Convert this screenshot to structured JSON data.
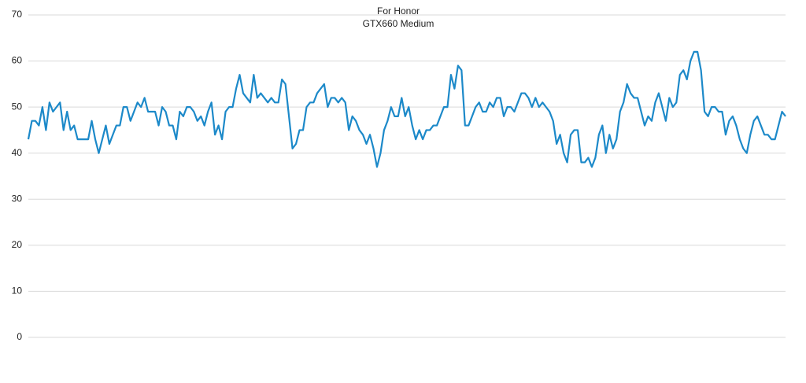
{
  "chart_data": {
    "type": "line",
    "title": "For Honor",
    "subtitle": "GTX660 Medium",
    "categories": [
      null,
      null,
      null,
      null,
      null,
      null,
      null,
      null,
      null,
      null,
      null,
      null,
      null,
      null,
      null,
      null,
      null,
      null,
      null,
      null,
      null,
      null,
      null,
      null,
      null,
      null,
      null,
      null,
      null,
      null,
      null,
      null,
      null,
      null,
      null,
      null,
      null,
      null,
      null,
      null,
      null,
      null,
      null,
      null,
      null,
      null,
      null,
      null,
      null,
      null,
      null,
      null,
      null,
      null,
      null,
      null,
      null,
      null,
      null,
      null,
      null,
      null,
      null,
      null,
      null,
      null,
      null,
      null,
      null,
      null,
      null,
      null,
      null,
      null,
      null,
      null,
      null,
      null,
      null,
      null,
      null,
      null,
      null,
      null,
      null,
      null,
      null,
      null,
      null,
      null,
      null,
      null,
      null,
      null,
      null,
      null,
      null,
      null,
      null,
      null,
      null,
      null,
      null,
      null,
      null,
      null,
      null,
      null,
      null,
      null,
      null,
      null,
      null,
      null,
      null,
      null,
      null,
      null,
      null,
      null,
      null,
      null,
      null,
      null,
      null,
      null,
      null,
      null,
      null,
      null,
      null,
      null,
      null,
      null,
      null,
      null,
      null,
      null,
      null,
      null,
      null,
      null,
      null,
      null,
      null,
      null,
      null,
      null,
      null,
      null,
      null,
      null,
      null,
      null,
      null,
      null,
      null,
      null,
      null,
      null,
      null,
      null,
      null,
      null,
      null,
      null,
      null,
      null,
      null,
      null,
      null,
      null,
      null,
      null,
      null,
      null,
      null,
      null,
      null,
      null,
      null,
      null,
      null,
      null,
      null,
      null,
      null,
      null,
      null,
      null,
      null,
      null,
      null,
      null,
      null,
      null,
      null,
      null,
      null,
      null,
      null,
      null,
      null,
      null,
      null,
      null,
      null,
      null,
      null,
      null,
      null,
      null,
      null,
      null,
      null,
      null
    ],
    "values": [
      43,
      47,
      47,
      46,
      50,
      45,
      51,
      49,
      50,
      51,
      45,
      49,
      45,
      46,
      43,
      43,
      43,
      43,
      47,
      43,
      40,
      43,
      46,
      42,
      44,
      46,
      46,
      50,
      50,
      47,
      49,
      51,
      50,
      52,
      49,
      49,
      49,
      46,
      50,
      49,
      46,
      46,
      43,
      49,
      48,
      50,
      50,
      49,
      47,
      48,
      46,
      49,
      51,
      44,
      46,
      43,
      49,
      50,
      50,
      54,
      57,
      53,
      52,
      51,
      57,
      52,
      53,
      52,
      51,
      52,
      51,
      51,
      56,
      55,
      48,
      41,
      42,
      45,
      45,
      50,
      51,
      51,
      53,
      54,
      55,
      50,
      52,
      52,
      51,
      52,
      51,
      45,
      48,
      47,
      45,
      44,
      42,
      44,
      41,
      37,
      40,
      45,
      47,
      50,
      48,
      48,
      52,
      48,
      50,
      46,
      43,
      45,
      43,
      45,
      45,
      46,
      46,
      48,
      50,
      50,
      57,
      54,
      59,
      58,
      46,
      46,
      48,
      50,
      51,
      49,
      49,
      51,
      50,
      52,
      52,
      48,
      50,
      50,
      49,
      51,
      53,
      53,
      52,
      50,
      52,
      50,
      51,
      50,
      49,
      47,
      42,
      44,
      40,
      38,
      44,
      45,
      45,
      38,
      38,
      39,
      37,
      39,
      44,
      46,
      40,
      44,
      41,
      43,
      49,
      51,
      55,
      53,
      52,
      52,
      49,
      46,
      48,
      47,
      51,
      53,
      50,
      47,
      52,
      50,
      51,
      57,
      58,
      56,
      60,
      62,
      62,
      58,
      49,
      48,
      50,
      50,
      49,
      49,
      44,
      47,
      48,
      46,
      43,
      41,
      40,
      44,
      47,
      48,
      46,
      44,
      44,
      43,
      43,
      46,
      49,
      48
    ],
    "color": "#1c89c9",
    "ylim": [
      0,
      70
    ],
    "yticks": [
      0,
      10,
      20,
      30,
      40,
      50,
      60,
      70
    ],
    "grid": true
  }
}
